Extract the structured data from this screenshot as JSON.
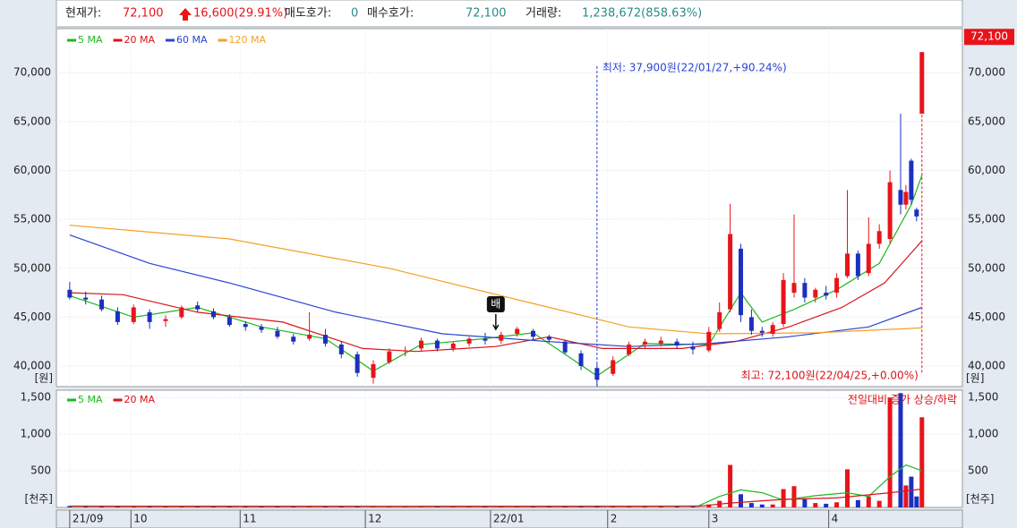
{
  "header": {
    "items": [
      {
        "label": "현재가:",
        "value": "72,100"
      },
      {
        "label": "",
        "value": "16,600(29.91%)"
      },
      {
        "label": "매도호가:",
        "value": "0"
      },
      {
        "label": "매수호가:",
        "value": "72,100"
      },
      {
        "label": "거래량:",
        "value": "1,238,672(858.63%)"
      }
    ]
  },
  "chart_data": [
    {
      "type": "candlestick",
      "unit_label": "[원]",
      "up_color": "#e8141a",
      "down_color": "#1c2fc0",
      "grid": true,
      "xlim": [
        -2.5,
        167.6
      ],
      "ylim": [
        37900,
        74500
      ],
      "yticks": [
        {
          "value": 40000,
          "label": "40,000"
        },
        {
          "value": 45000,
          "label": "45,000"
        },
        {
          "value": 50000,
          "label": "50,000"
        },
        {
          "value": 55000,
          "label": "55,000"
        },
        {
          "value": 60000,
          "label": "60,000"
        },
        {
          "value": 65000,
          "label": "65,000"
        },
        {
          "value": 70000,
          "label": "70,000"
        }
      ],
      "xticks": [
        {
          "value": 0,
          "label": "21/09"
        },
        {
          "value": 11.5,
          "label": "10"
        },
        {
          "value": 32,
          "label": "11"
        },
        {
          "value": 55.5,
          "label": "12"
        },
        {
          "value": 79,
          "label": "22/01"
        },
        {
          "value": 101,
          "label": "2"
        },
        {
          "value": 120,
          "label": "3"
        },
        {
          "value": 142.5,
          "label": "4"
        }
      ],
      "candles": {
        "x": [
          0,
          3,
          6,
          9,
          12,
          15,
          18,
          21,
          24,
          27,
          30,
          33,
          36,
          39,
          42,
          45,
          48,
          51,
          54,
          57,
          60,
          63,
          66,
          69,
          72,
          75,
          78,
          81,
          84,
          87,
          90,
          93,
          96,
          99,
          102,
          105,
          108,
          111,
          114,
          117,
          120,
          122,
          124,
          126,
          128,
          130,
          132,
          134,
          136,
          138,
          140,
          142,
          144,
          146,
          148,
          150,
          152,
          154,
          156,
          157,
          158,
          159,
          160
        ],
        "open": [
          47800,
          47000,
          46800,
          45600,
          44500,
          45500,
          44600,
          45000,
          46200,
          45600,
          45000,
          44300,
          44000,
          43600,
          43000,
          42800,
          43200,
          42200,
          41200,
          38800,
          40400,
          41500,
          41800,
          42600,
          41800,
          42300,
          42800,
          42600,
          43300,
          43600,
          43000,
          42500,
          41300,
          39800,
          39200,
          41200,
          42200,
          42300,
          42500,
          42000,
          41600,
          43800,
          45800,
          52000,
          45000,
          43600,
          43300,
          44300,
          47500,
          48500,
          47000,
          47500,
          47500,
          49200,
          51500,
          49500,
          52500,
          53000,
          58000,
          56500,
          61000,
          56000,
          65800
        ],
        "high": [
          48600,
          47600,
          47200,
          46000,
          46300,
          45800,
          45200,
          46200,
          46600,
          45900,
          45300,
          44600,
          44300,
          44000,
          43300,
          45500,
          43800,
          42500,
          41500,
          40600,
          41800,
          42000,
          42900,
          42800,
          42500,
          43000,
          43400,
          43500,
          44000,
          43800,
          43200,
          42700,
          41600,
          40200,
          41000,
          42500,
          42800,
          43000,
          42800,
          42500,
          44000,
          46500,
          56600,
          52500,
          45800,
          44000,
          44500,
          49500,
          55500,
          49000,
          48000,
          48200,
          49500,
          58000,
          51800,
          55200,
          54500,
          60000,
          65800,
          58500,
          61200,
          56200,
          72100
        ],
        "low": [
          46800,
          46300,
          45600,
          44200,
          44300,
          43800,
          44000,
          44800,
          45500,
          44800,
          44000,
          43600,
          43400,
          42800,
          42200,
          42600,
          42000,
          40800,
          38900,
          38200,
          40200,
          41000,
          41500,
          41500,
          41500,
          42000,
          42200,
          42300,
          43000,
          42700,
          42400,
          41200,
          39600,
          37900,
          39000,
          41000,
          41800,
          42000,
          41800,
          41200,
          41400,
          43500,
          45500,
          44500,
          43200,
          43000,
          43000,
          44000,
          47000,
          46500,
          46500,
          46800,
          47000,
          49000,
          48800,
          49200,
          52000,
          52500,
          55500,
          56000,
          56500,
          54800,
          65800
        ],
        "close": [
          47000,
          46800,
          45800,
          44500,
          46000,
          44500,
          44800,
          46000,
          45800,
          45000,
          44200,
          44000,
          43700,
          43000,
          42500,
          43200,
          42300,
          41200,
          39300,
          40200,
          41500,
          41600,
          42600,
          41800,
          42300,
          42800,
          42600,
          43200,
          43800,
          43000,
          42700,
          41400,
          40000,
          38600,
          40600,
          42200,
          42500,
          42600,
          42100,
          41700,
          43500,
          45500,
          53500,
          45200,
          43600,
          43400,
          44200,
          48800,
          48500,
          47000,
          47800,
          47200,
          49000,
          51500,
          49200,
          52500,
          53800,
          58800,
          56500,
          57800,
          57000,
          55300,
          72100
        ]
      },
      "series": [
        {
          "name": "5 MA",
          "color": "#1db81d",
          "x": [
            0,
            12,
            24,
            36,
            48,
            57,
            66,
            78,
            87,
            99,
            108,
            120,
            126,
            130,
            136,
            144,
            152,
            158,
            160
          ],
          "values": [
            47200,
            45000,
            46000,
            44000,
            42800,
            39500,
            42200,
            42800,
            43400,
            39000,
            42300,
            42200,
            47500,
            44500,
            45800,
            47800,
            50500,
            56500,
            59500
          ]
        },
        {
          "name": "20 MA",
          "color": "#d9141a",
          "x": [
            0,
            10,
            24,
            40,
            55,
            65,
            80,
            90,
            100,
            115,
            125,
            135,
            145,
            153,
            160
          ],
          "values": [
            47500,
            47300,
            45500,
            44500,
            41800,
            41500,
            42000,
            43000,
            41800,
            41800,
            42500,
            44000,
            46000,
            48500,
            52800
          ]
        },
        {
          "name": "60 MA",
          "color": "#2a44d0",
          "x": [
            0,
            15,
            30,
            50,
            70,
            90,
            105,
            120,
            135,
            150,
            160
          ],
          "values": [
            53400,
            50500,
            48500,
            45500,
            43300,
            42500,
            42000,
            42300,
            43000,
            44000,
            46000
          ]
        },
        {
          "name": "120 MA",
          "color": "#f5a025",
          "x": [
            0,
            30,
            60,
            90,
            105,
            120,
            140,
            160
          ],
          "values": [
            54400,
            53000,
            50000,
            46000,
            44000,
            43300,
            43400,
            43900
          ]
        }
      ],
      "low_marker": {
        "x": 99,
        "value": 37900,
        "label": "최저: 37,900원(22/01/27,+90.24%)"
      },
      "high_marker": {
        "x": 160,
        "value": 72100,
        "label": "최고: 72,100원(22/04/25,+0.00%)"
      },
      "signal": {
        "x": 80,
        "value": 43300,
        "label": "배"
      },
      "last_price": {
        "value": 72100,
        "label": "72,100"
      }
    },
    {
      "type": "bar",
      "unit_label": "[천주]",
      "annotation": "전일대비 증가 상승/하락",
      "grid": true,
      "xlim": [
        -2.5,
        167.6
      ],
      "ylim": [
        0,
        1600
      ],
      "yticks": [
        500,
        {
          "value": 1000,
          "label": "1,000"
        },
        {
          "value": 1500,
          "label": "1,500"
        }
      ],
      "x": [
        0,
        3,
        6,
        9,
        12,
        15,
        18,
        21,
        24,
        27,
        30,
        33,
        36,
        39,
        42,
        45,
        48,
        51,
        54,
        57,
        60,
        63,
        66,
        69,
        72,
        75,
        78,
        81,
        84,
        87,
        90,
        93,
        96,
        99,
        102,
        105,
        108,
        111,
        114,
        117,
        120,
        122,
        124,
        126,
        128,
        130,
        132,
        134,
        136,
        138,
        140,
        142,
        144,
        146,
        148,
        150,
        152,
        154,
        156,
        157,
        158,
        159,
        160
      ],
      "values": [
        20,
        15,
        15,
        18,
        20,
        15,
        12,
        15,
        15,
        12,
        12,
        12,
        12,
        12,
        14,
        18,
        14,
        15,
        20,
        18,
        15,
        12,
        14,
        12,
        12,
        12,
        12,
        14,
        14,
        12,
        12,
        15,
        20,
        25,
        22,
        18,
        15,
        14,
        14,
        15,
        40,
        90,
        580,
        180,
        60,
        40,
        40,
        250,
        290,
        110,
        60,
        50,
        70,
        520,
        100,
        150,
        90,
        1500,
        1560,
        300,
        420,
        150,
        1230
      ],
      "series": [
        {
          "name": "5 MA",
          "color": "#1db81d",
          "x": [
            0,
            40,
            80,
            118,
            122,
            126,
            130,
            134,
            140,
            146,
            150,
            154,
            157,
            160
          ],
          "values": [
            18,
            15,
            13,
            20,
            150,
            240,
            200,
            100,
            160,
            200,
            150,
            420,
            580,
            500
          ]
        },
        {
          "name": "20 MA",
          "color": "#d9141a",
          "x": [
            0,
            60,
            118,
            124,
            134,
            144,
            154,
            160
          ],
          "values": [
            16,
            15,
            16,
            60,
            110,
            130,
            200,
            250
          ]
        }
      ]
    }
  ]
}
